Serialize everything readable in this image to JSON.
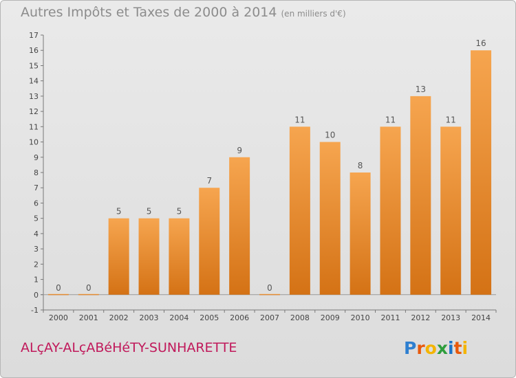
{
  "header": {
    "title": "Autres Impôts et Taxes de 2000 à 2014",
    "unit": "(en milliers d'€)"
  },
  "footer": {
    "commune": "ALçAY-ALçABéHéTY-SUNHARETTE",
    "brand": "Proxiti",
    "brand_colors": [
      "#2e7fd0",
      "#e8590c",
      "#f4b400",
      "#2e9d3c",
      "#1a73c8",
      "#e8590c",
      "#f4b400"
    ]
  },
  "colors": {
    "bar_top": "#f6a54f",
    "bar_bottom": "#d47215",
    "title": "#8c8c8c",
    "commune": "#c0185a"
  },
  "chart_data": {
    "type": "bar",
    "categories": [
      "2000",
      "2001",
      "2002",
      "2003",
      "2004",
      "2005",
      "2006",
      "2007",
      "2008",
      "2009",
      "2010",
      "2011",
      "2012",
      "2013",
      "2014"
    ],
    "values": [
      0,
      0,
      5,
      5,
      5,
      7,
      9,
      0,
      11,
      10,
      8,
      11,
      13,
      11,
      16
    ],
    "ylim": [
      -1,
      17
    ],
    "yticks": [
      -1,
      0,
      1,
      2,
      3,
      4,
      5,
      6,
      7,
      8,
      9,
      10,
      11,
      12,
      13,
      14,
      15,
      16,
      17
    ],
    "grid": false
  }
}
